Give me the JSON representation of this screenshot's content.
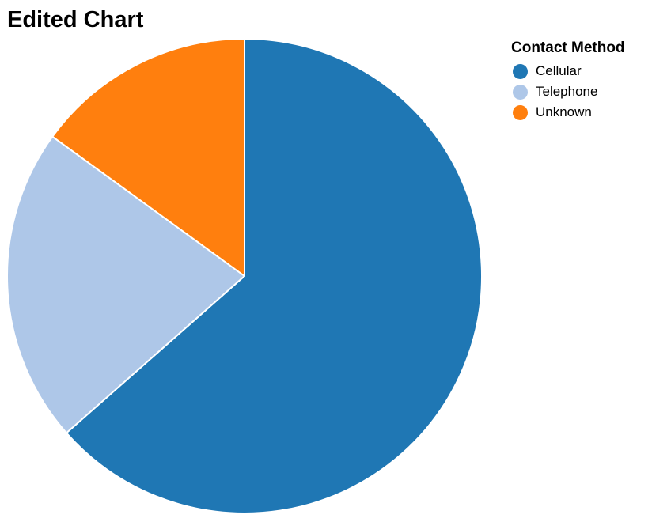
{
  "chart_data": {
    "type": "pie",
    "title": "Edited Chart",
    "legend": {
      "title": "Contact Method",
      "placement": "top-right"
    },
    "categories": [
      "Cellular",
      "Telephone",
      "Unknown"
    ],
    "values": [
      63.5,
      21.5,
      15.0
    ],
    "colors": [
      "#1f77b4",
      "#aec7e8",
      "#ff7f0e"
    ],
    "start_angle_deg": 0,
    "direction": "clockwise"
  }
}
